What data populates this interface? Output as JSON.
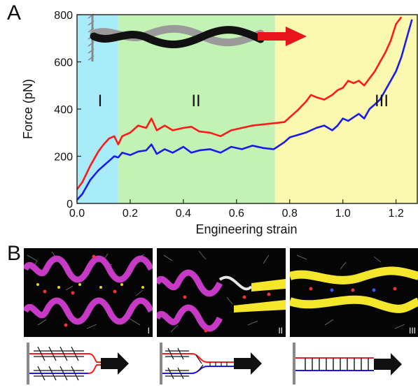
{
  "panels": {
    "a": "A",
    "b": "B"
  },
  "stage_labels": [
    "I",
    "II",
    "III"
  ],
  "colors": {
    "region_1": "#a8ecfa",
    "region_2": "#c2f2b4",
    "region_3": "#fbf9b0",
    "red_series": "#ff1a1a",
    "blue_series": "#1a1aee",
    "arrow": "#e8141c",
    "helix": "#c63ac6",
    "sheet": "#f4e62a"
  },
  "chart_data": {
    "type": "line",
    "xlabel": "Engineering strain",
    "ylabel": "Force (pN)",
    "xlim": [
      0,
      1.28
    ],
    "ylim": [
      0,
      800
    ],
    "xticks": [
      "0.0",
      "0.2",
      "0.4",
      "0.6",
      "0.8",
      "1.0",
      "1.2"
    ],
    "yticks": [
      "0",
      "200",
      "400",
      "600",
      "800"
    ],
    "regions": [
      {
        "label": "I",
        "x": [
          0,
          0.155
        ]
      },
      {
        "label": "II",
        "x": [
          0.155,
          0.745
        ]
      },
      {
        "label": "III",
        "x": [
          0.745,
          1.28
        ]
      }
    ],
    "series": [
      {
        "color": "#ff1a1a",
        "x": [
          0,
          0.02,
          0.05,
          0.08,
          0.1,
          0.12,
          0.14,
          0.155,
          0.17,
          0.2,
          0.23,
          0.26,
          0.28,
          0.3,
          0.33,
          0.36,
          0.4,
          0.43,
          0.46,
          0.5,
          0.54,
          0.58,
          0.62,
          0.66,
          0.7,
          0.74,
          0.78,
          0.8,
          0.83,
          0.86,
          0.88,
          0.9,
          0.93,
          0.96,
          0.98,
          1.0,
          1.02,
          1.04,
          1.06,
          1.08,
          1.1,
          1.12,
          1.14,
          1.16,
          1.18,
          1.2,
          1.22
        ],
        "y": [
          60,
          90,
          160,
          220,
          250,
          275,
          285,
          250,
          285,
          300,
          330,
          320,
          360,
          310,
          330,
          310,
          320,
          325,
          305,
          300,
          285,
          310,
          320,
          330,
          335,
          340,
          345,
          365,
          395,
          430,
          460,
          450,
          440,
          460,
          480,
          490,
          520,
          510,
          520,
          500,
          530,
          560,
          600,
          640,
          690,
          760,
          790
        ]
      },
      {
        "color": "#1a1aee",
        "x": [
          0,
          0.02,
          0.05,
          0.08,
          0.1,
          0.12,
          0.14,
          0.155,
          0.17,
          0.2,
          0.23,
          0.26,
          0.28,
          0.3,
          0.33,
          0.36,
          0.4,
          0.43,
          0.46,
          0.5,
          0.54,
          0.58,
          0.62,
          0.66,
          0.7,
          0.74,
          0.78,
          0.8,
          0.83,
          0.86,
          0.9,
          0.93,
          0.96,
          0.98,
          1.0,
          1.02,
          1.04,
          1.06,
          1.08,
          1.1,
          1.12,
          1.14,
          1.16,
          1.18,
          1.2,
          1.22,
          1.24,
          1.26
        ],
        "y": [
          15,
          40,
          100,
          140,
          160,
          180,
          200,
          195,
          215,
          205,
          220,
          225,
          250,
          210,
          230,
          215,
          240,
          215,
          225,
          230,
          215,
          240,
          230,
          245,
          235,
          230,
          260,
          280,
          290,
          300,
          320,
          330,
          310,
          330,
          360,
          350,
          365,
          380,
          360,
          400,
          420,
          440,
          480,
          520,
          560,
          620,
          700,
          780
        ]
      }
    ]
  }
}
